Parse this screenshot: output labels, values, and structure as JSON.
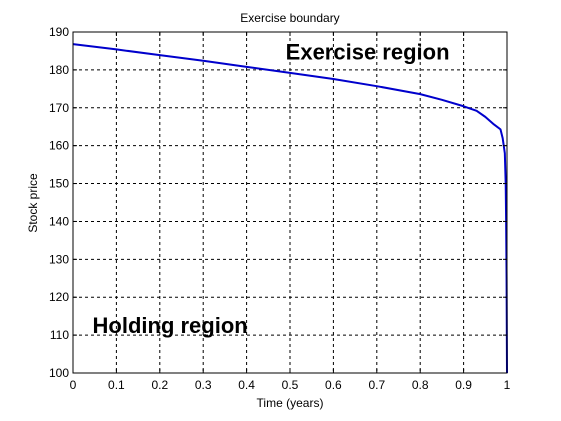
{
  "chart_data": {
    "type": "line",
    "title": "Exercise boundary",
    "xlabel": "Time (years)",
    "ylabel": "Stock price",
    "xlim": [
      0,
      1
    ],
    "ylim": [
      100,
      190
    ],
    "xticks": [
      "0",
      "0.1",
      "0.2",
      "0.3",
      "0.4",
      "0.5",
      "0.6",
      "0.7",
      "0.8",
      "0.9",
      "1"
    ],
    "yticks": [
      "100",
      "110",
      "120",
      "130",
      "140",
      "150",
      "160",
      "170",
      "180",
      "190"
    ],
    "grid": true,
    "grid_style": "dashed",
    "series": [
      {
        "color": "#0000cc",
        "x": [
          0,
          0.1,
          0.2,
          0.3,
          0.4,
          0.5,
          0.6,
          0.7,
          0.8,
          0.85,
          0.9,
          0.93,
          0.95,
          0.97,
          0.985,
          0.99,
          0.995,
          0.997,
          0.998,
          0.999,
          1.0
        ],
        "y": [
          186.8,
          185.4,
          183.9,
          182.4,
          180.8,
          179.2,
          177.6,
          175.7,
          173.6,
          172.1,
          170.4,
          169.2,
          167.6,
          165.6,
          164.3,
          162.0,
          158.0,
          150.0,
          140.0,
          125.0,
          100.0
        ]
      }
    ],
    "annotations": [
      {
        "text": "Exercise region",
        "x": 0.49,
        "y": 182.8
      },
      {
        "text": "Holding region",
        "x": 0.045,
        "y": 110.6
      }
    ]
  }
}
